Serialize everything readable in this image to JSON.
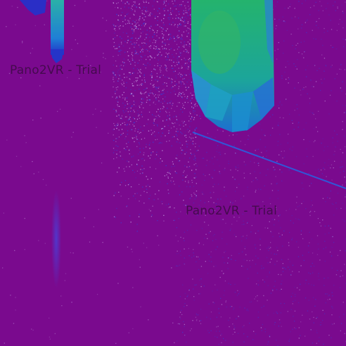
{
  "background_color": "#7a0a8e",
  "palette": {
    "noise_light": "#c9a6e6",
    "noise_blue": "#3a3fd8",
    "teal": "#1f9fc8",
    "green": "#27b36a",
    "dark_blue": "#1830c8"
  },
  "watermarks": [
    {
      "text": "Pano2VR - Trial"
    },
    {
      "text": "Pano2VR - Trial"
    }
  ]
}
